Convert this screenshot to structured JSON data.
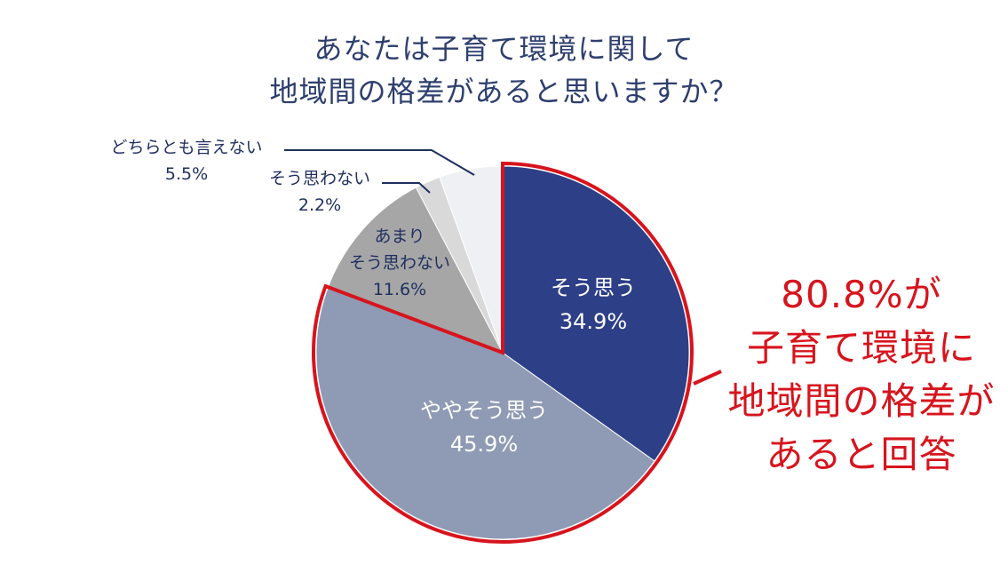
{
  "title": {
    "line1": "あなたは子育て環境に関して",
    "line2": "地域間の格差があると思いますか？"
  },
  "callout": {
    "lines": [
      "80.8%が",
      "子育て環境に",
      "地域間の格差が",
      "あると回答"
    ],
    "highlight_color": "#d7141d"
  },
  "chart_data": {
    "type": "pie",
    "start": "12 o'clock",
    "direction": "clockwise",
    "slices": [
      {
        "label": "そう思う",
        "value": 34.9,
        "value_label": "34.9%",
        "color": "#2d3f87",
        "text_color": "#ffffff",
        "highlighted": true
      },
      {
        "label": "ややそう思う",
        "value": 45.9,
        "value_label": "45.9%",
        "color": "#8f9bb4",
        "text_color": "#ffffff",
        "highlighted": true
      },
      {
        "label": "あまり\nそう思わない",
        "value": 11.6,
        "value_label": "11.6%",
        "color": "#a6a6a6",
        "text_color": "#1f2f5f",
        "highlighted": false
      },
      {
        "label": "そう思わない",
        "value": 2.2,
        "value_label": "2.2%",
        "color": "#d9d9d9",
        "text_color": "#1f2f5f",
        "highlighted": false
      },
      {
        "label": "どちらとも言えない",
        "value": 5.5,
        "value_label": "5.5%",
        "color": "#eef0f3",
        "text_color": "#1f2f5f",
        "highlighted": false
      }
    ]
  }
}
